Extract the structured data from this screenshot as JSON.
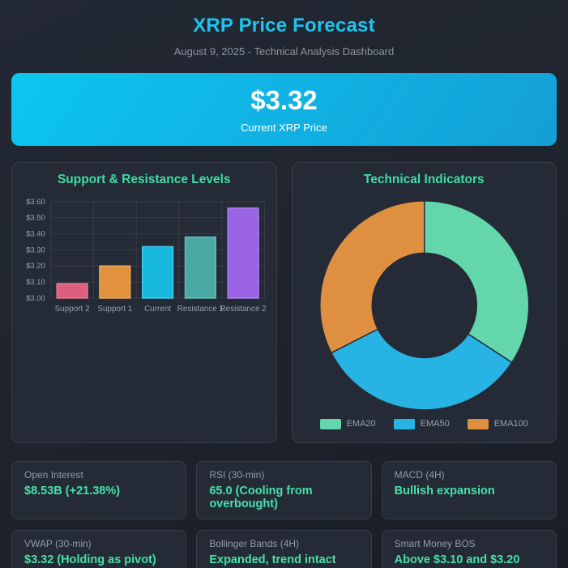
{
  "header": {
    "title": "XRP Price Forecast",
    "subtitle": "August 9, 2025 - Technical Analysis Dashboard"
  },
  "banner": {
    "price": "$3.32",
    "label": "Current XRP Price"
  },
  "chart_data": [
    {
      "type": "bar",
      "title": "Support & Resistance Levels",
      "categories": [
        "Support 2",
        "Support 1",
        "Current",
        "Resistance 1",
        "Resistance 2"
      ],
      "values": [
        3.09,
        3.2,
        3.32,
        3.38,
        3.56
      ],
      "bar_colors": [
        "#dc5f7e",
        "#e2913c",
        "#16b8de",
        "#4aa8a2",
        "#9a63e6"
      ],
      "bar_border_colors": [
        "#ea7a95",
        "#edaa5c",
        "#3ecdf0",
        "#64c0ba",
        "#b083f0"
      ],
      "xlabel": "",
      "ylabel": "",
      "ylim": [
        3.0,
        3.6
      ],
      "ytick_step": 0.1,
      "ytick_prefix": "$",
      "grid": true,
      "legend_position": "none"
    },
    {
      "type": "pie",
      "title": "Technical Indicators",
      "labels": [
        "EMA20",
        "EMA50",
        "EMA100"
      ],
      "values": [
        34.2,
        33.3,
        32.5
      ],
      "colors": [
        "#63d7ab",
        "#27b3e4",
        "#de9040"
      ],
      "donut": true,
      "inner_radius_ratio": 0.5,
      "start_angle_deg": 0,
      "legend_position": "bottom"
    }
  ],
  "cards": [
    {
      "label": "Open Interest",
      "value": "$8.53B (+21.38%)"
    },
    {
      "label": "RSI (30-min)",
      "value": "65.0 (Cooling from overbought)"
    },
    {
      "label": "MACD (4H)",
      "value": "Bullish expansion"
    },
    {
      "label": "VWAP (30-min)",
      "value": "$3.32 (Holding as pivot)"
    },
    {
      "label": "Bollinger Bands (4H)",
      "value": "Expanded, trend intact"
    },
    {
      "label": "Smart Money BOS",
      "value": "Above $3.10 and $3.20"
    }
  ],
  "colors": {
    "page_bg": "#1e232d",
    "page_bg_light": "#232934",
    "page_bg_dark": "#181d26",
    "panel_bg": "#252b36",
    "panel_border": "rgba(255,255,255,0.09)",
    "banner_start": "#0cc6f0",
    "banner_end": "#149fd6",
    "title_cyan": "#1fc3ef",
    "subtitle_gray": "#8d95a2",
    "panel_title_mint": "#3edda4",
    "card_label_gray": "#929aa6",
    "card_value_mint": "#45e0ab",
    "axis_label": "#98a0ab",
    "grid_line": "rgba(255,255,255,0.08)"
  }
}
